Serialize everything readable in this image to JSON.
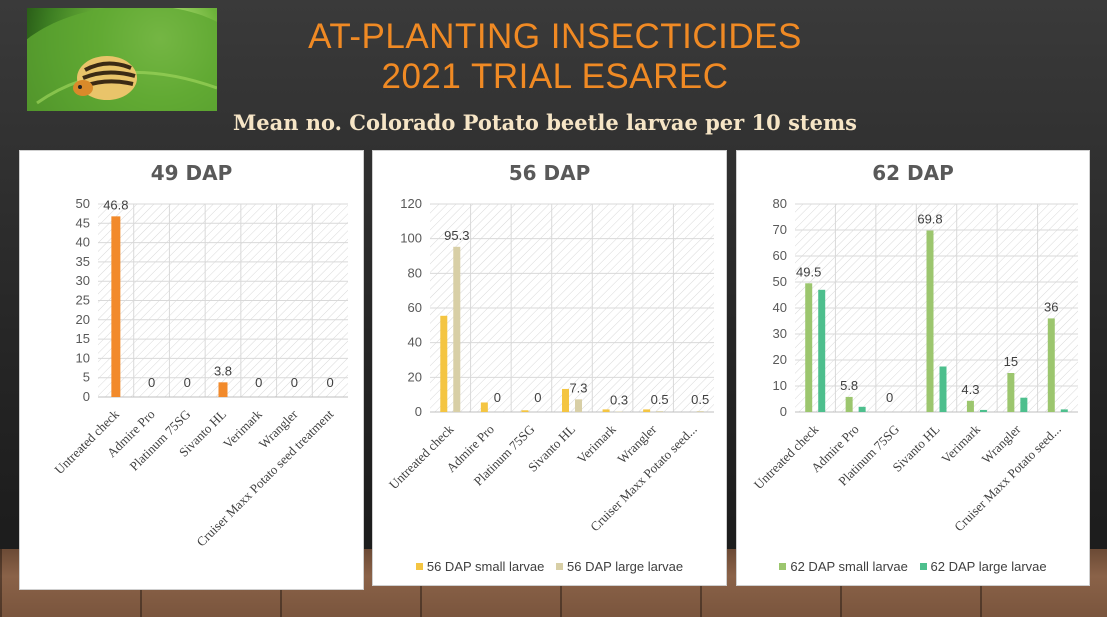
{
  "title_line1": "AT-PLANTING INSECTICIDES",
  "title_line2": "2021 TRIAL ESAREC",
  "subtitle": "Mean no. Colorado Potato beetle larvae per 10 stems",
  "chart_data": [
    {
      "type": "bar",
      "title": "49 DAP",
      "categories": [
        "Untreated check",
        "Admire Pro",
        "Platinum 75SG",
        "Sivanto HL",
        "Verimark",
        "Wrangler",
        "Cruiser Maxx Potato seed treatment"
      ],
      "series": [
        {
          "name": "49 DAP",
          "color": "#f28a2b",
          "values": [
            46.8,
            0,
            0,
            3.8,
            0,
            0,
            0
          ],
          "labels": [
            "46.8",
            "0",
            "0",
            "3.8",
            "0",
            "0",
            "0"
          ]
        }
      ],
      "ylim": [
        0,
        50
      ],
      "yticks": [
        0,
        5,
        10,
        15,
        20,
        25,
        30,
        35,
        40,
        45,
        50
      ],
      "legend": false
    },
    {
      "type": "bar",
      "title": "56 DAP",
      "categories": [
        "Untreated check",
        "Admire Pro",
        "Platinum 75SG",
        "Sivanto HL",
        "Verimark",
        "Wrangler",
        "Cruiser Maxx Potato seed..."
      ],
      "series": [
        {
          "name": "56 DAP small larvae",
          "color": "#f4c542",
          "values": [
            55.5,
            5.5,
            1,
            13.3,
            1.5,
            1.5,
            0
          ],
          "labels": [
            "",
            "",
            "",
            "",
            "",
            "",
            ""
          ]
        },
        {
          "name": "56 DAP large larvae",
          "color": "#d8cfa6",
          "values": [
            95.3,
            0,
            0,
            7.3,
            0.3,
            0.5,
            0.5
          ],
          "labels": [
            "95.3",
            "0",
            "0",
            "7.3",
            "0.3",
            "0.5",
            "0.5"
          ]
        }
      ],
      "ylim": [
        0,
        120
      ],
      "yticks": [
        0,
        20,
        40,
        60,
        80,
        100,
        120
      ],
      "legend": true
    },
    {
      "type": "bar",
      "title": "62 DAP",
      "categories": [
        "Untreated check",
        "Admire Pro",
        "Platinum 75SG",
        "Sivanto HL",
        "Verimark",
        "Wrangler",
        "Cruiser Maxx Potato seed..."
      ],
      "series": [
        {
          "name": "62 DAP small larvae",
          "color": "#9cc66e",
          "values": [
            49.5,
            5.8,
            0,
            69.8,
            4.3,
            15,
            36
          ],
          "labels": [
            "49.5",
            "5.8",
            "0",
            "69.8",
            "4.3",
            "15",
            "36"
          ]
        },
        {
          "name": "62 DAP large larvae",
          "color": "#4dbf8d",
          "values": [
            47,
            2,
            0,
            17.5,
            0.8,
            5.5,
            1
          ],
          "labels": [
            "",
            "",
            "",
            "",
            "",
            "",
            ""
          ]
        }
      ],
      "ylim": [
        0,
        80
      ],
      "yticks": [
        0,
        10,
        20,
        30,
        40,
        50,
        60,
        70,
        80
      ],
      "legend": true
    }
  ]
}
